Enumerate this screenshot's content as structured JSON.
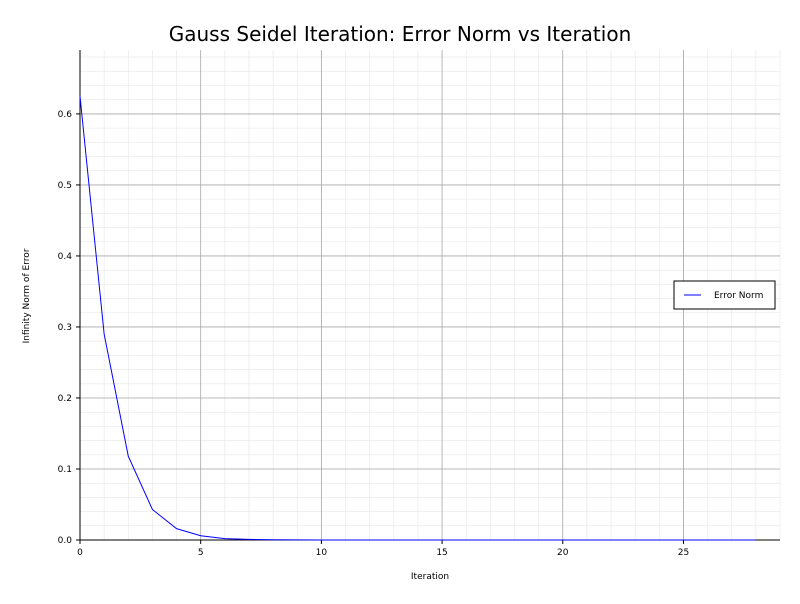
{
  "chart_data": {
    "type": "line",
    "title": "Gauss Seidel Iteration: Error Norm vs Iteration",
    "xlabel": "Iteration",
    "ylabel": "Infinity Norm of Error",
    "xlim": [
      0,
      29
    ],
    "ylim": [
      0,
      0.69
    ],
    "x_ticks": [
      0,
      5,
      10,
      15,
      20,
      25
    ],
    "y_ticks": [
      0.0,
      0.1,
      0.2,
      0.3,
      0.4,
      0.5,
      0.6
    ],
    "x_tick_labels": [
      "0",
      "5",
      "10",
      "15",
      "20",
      "25"
    ],
    "y_tick_labels": [
      "0.0",
      "0.1",
      "0.2",
      "0.3",
      "0.4",
      "0.5",
      "0.6"
    ],
    "grid": true,
    "minor_grid": true,
    "legend_position": "right",
    "series": [
      {
        "name": "Error Norm",
        "color": "#0000ff",
        "x": [
          0,
          1,
          2,
          3,
          4,
          5,
          6,
          7,
          8,
          9,
          10,
          11,
          12,
          13,
          14,
          15,
          16,
          17,
          18,
          19,
          20,
          21,
          22,
          23,
          24,
          25,
          26,
          27,
          28
        ],
        "values": [
          0.625,
          0.29,
          0.118,
          0.043,
          0.016,
          0.006,
          0.002,
          0.0008,
          0.0003,
          0.0001,
          0,
          0,
          0,
          0,
          0,
          0,
          0,
          0,
          0,
          0,
          0,
          0,
          0,
          0,
          0,
          0,
          0,
          0,
          0
        ]
      }
    ]
  }
}
